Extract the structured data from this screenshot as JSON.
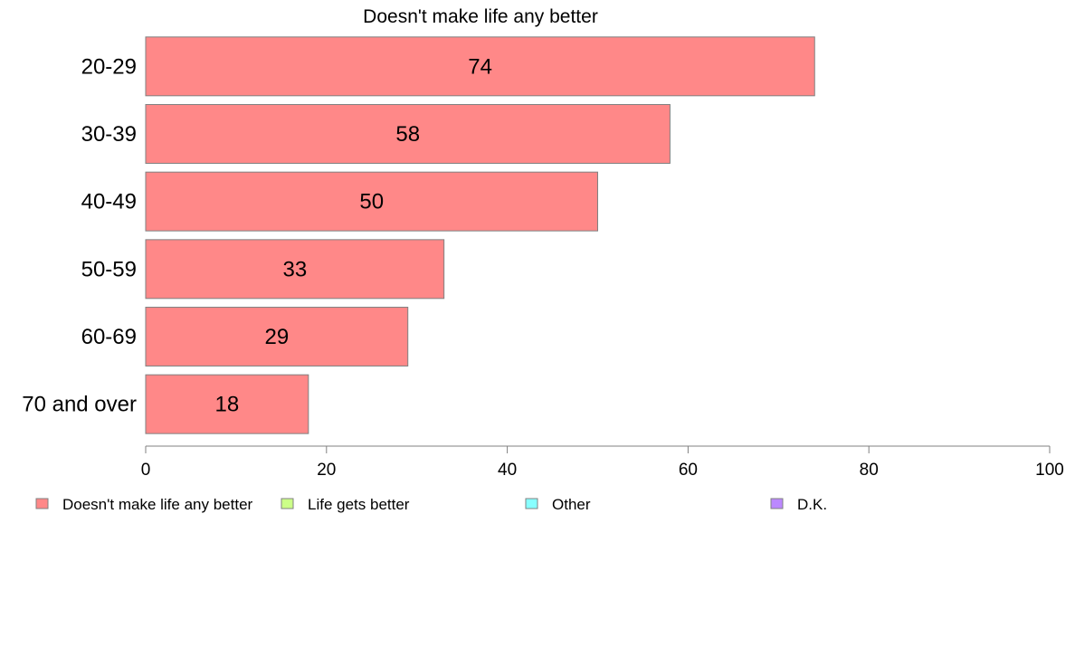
{
  "chart_data": {
    "type": "bar",
    "orientation": "horizontal",
    "title": "Doesn't make life any better",
    "categories": [
      "20-29",
      "30-39",
      "40-49",
      "50-59",
      "60-69",
      "70 and over"
    ],
    "series": [
      {
        "name": "Doesn't make life any better",
        "values": [
          74,
          58,
          50,
          33,
          29,
          18
        ],
        "color": "#ff8888"
      }
    ],
    "data_labels": [
      "74",
      "58",
      "50",
      "33",
      "29",
      "18"
    ],
    "xlim": [
      0,
      100
    ],
    "xticks": [
      0,
      20,
      40,
      60,
      80,
      100
    ],
    "xtick_labels": [
      "0",
      "20",
      "40",
      "60",
      "80",
      "100"
    ],
    "grid": false,
    "legend_position": "bottom",
    "legend": [
      {
        "label": "Doesn't make life any better",
        "color": "#ff8888"
      },
      {
        "label": "Life gets better",
        "color": "#ccff88"
      },
      {
        "label": "Other",
        "color": "#88ffff"
      },
      {
        "label": "D.K.",
        "color": "#bb88ff"
      }
    ]
  }
}
